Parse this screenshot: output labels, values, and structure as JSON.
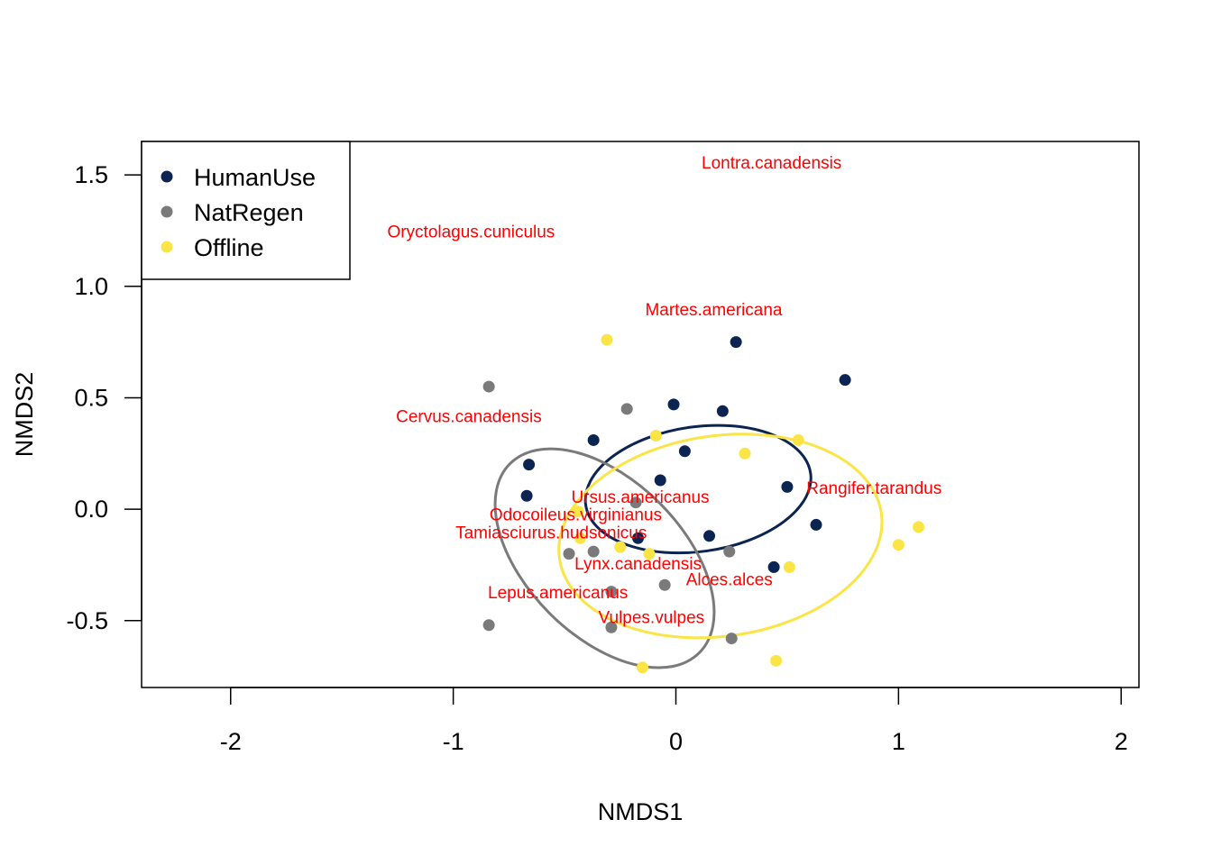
{
  "chart_data": {
    "type": "scatter",
    "title": "",
    "xlabel": "NMDS1",
    "ylabel": "NMDS2",
    "xlim": [
      -2.4,
      2.08
    ],
    "ylim": [
      -0.8,
      1.65
    ],
    "xticks": [
      -2,
      -1,
      0,
      1,
      2
    ],
    "xtick_labels": [
      "-2",
      "-1",
      "0",
      "1",
      "2"
    ],
    "yticks": [
      -0.5,
      0.0,
      0.5,
      1.0,
      1.5
    ],
    "ytick_labels": [
      "-0.5",
      "0.0",
      "0.5",
      "1.0",
      "1.5"
    ],
    "legend": {
      "position": "top-left",
      "entries": [
        {
          "name": "HumanUse",
          "color": "#0b2451"
        },
        {
          "name": "NatRegen",
          "color": "#7a7a7a"
        },
        {
          "name": "Offline",
          "color": "#fbe546"
        }
      ]
    },
    "series": [
      {
        "name": "HumanUse",
        "color": "#0b2451",
        "points": [
          [
            0.27,
            0.75
          ],
          [
            0.76,
            0.58
          ],
          [
            -0.01,
            0.47
          ],
          [
            0.21,
            0.44
          ],
          [
            -0.37,
            0.31
          ],
          [
            0.04,
            0.26
          ],
          [
            -0.66,
            0.2
          ],
          [
            -0.07,
            0.13
          ],
          [
            0.5,
            0.1
          ],
          [
            -0.67,
            0.06
          ],
          [
            0.63,
            -0.07
          ],
          [
            0.15,
            -0.12
          ],
          [
            -0.17,
            -0.13
          ],
          [
            0.44,
            -0.26
          ]
        ],
        "ellipse": {
          "center": [
            0.1,
            0.09
          ],
          "rx": 0.51,
          "ry": 0.28,
          "rotation_deg": -8
        }
      },
      {
        "name": "NatRegen",
        "color": "#7a7a7a",
        "points": [
          [
            -0.84,
            0.55
          ],
          [
            -0.22,
            0.45
          ],
          [
            -0.18,
            0.03
          ],
          [
            -0.48,
            -0.2
          ],
          [
            -0.37,
            -0.19
          ],
          [
            0.24,
            -0.19
          ],
          [
            -0.05,
            -0.34
          ],
          [
            -0.29,
            -0.37
          ],
          [
            -0.84,
            -0.52
          ],
          [
            -0.29,
            -0.53
          ],
          [
            0.25,
            -0.58
          ]
        ],
        "ellipse": {
          "center": [
            -0.32,
            -0.22
          ],
          "rx": 0.35,
          "ry": 0.6,
          "rotation_deg": -45
        }
      },
      {
        "name": "Offline",
        "color": "#fbe546",
        "points": [
          [
            -0.31,
            0.76
          ],
          [
            -0.09,
            0.33
          ],
          [
            0.55,
            0.31
          ],
          [
            0.31,
            0.25
          ],
          [
            -0.44,
            -0.01
          ],
          [
            1.09,
            -0.08
          ],
          [
            -0.43,
            -0.13
          ],
          [
            1.0,
            -0.16
          ],
          [
            -0.25,
            -0.17
          ],
          [
            -0.12,
            -0.2
          ],
          [
            0.51,
            -0.26
          ],
          [
            -0.15,
            -0.71
          ],
          [
            0.45,
            -0.68
          ]
        ],
        "ellipse": {
          "center": [
            0.2,
            -0.12
          ],
          "rx": 0.73,
          "ry": 0.45,
          "rotation_deg": -8
        }
      }
    ],
    "species_color": "#ff0000",
    "species": [
      {
        "label": "Lontra.canadensis",
        "x": 0.43,
        "y": 1.55
      },
      {
        "label": "Oryctolagus.cuniculus",
        "x": -0.92,
        "y": 1.24
      },
      {
        "label": "Martes.americana",
        "x": 0.17,
        "y": 0.89
      },
      {
        "label": "Cervus.canadensis",
        "x": -0.93,
        "y": 0.41
      },
      {
        "label": "Rangifer.tarandus",
        "x": 0.89,
        "y": 0.09
      },
      {
        "label": "Ursus.americanus",
        "x": -0.16,
        "y": 0.05
      },
      {
        "label": "Odocoileus.virginianus",
        "x": -0.45,
        "y": -0.03
      },
      {
        "label": "Tamiasciurus.hudsonicus",
        "x": -0.56,
        "y": -0.11
      },
      {
        "label": "Lynx.canadensis",
        "x": -0.17,
        "y": -0.25
      },
      {
        "label": "Alces.alces",
        "x": 0.24,
        "y": -0.32
      },
      {
        "label": "Lepus.americanus",
        "x": -0.53,
        "y": -0.38
      },
      {
        "label": "Vulpes.vulpes",
        "x": -0.11,
        "y": -0.49
      }
    ]
  }
}
